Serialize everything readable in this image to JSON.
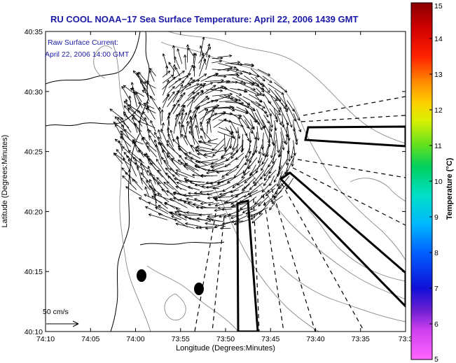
{
  "chart_data": {
    "type": "map",
    "title": "RU COOL  NOAA−17  Sea Surface Temperature:  April 22, 2006 1439 GMT",
    "legend_lines": [
      "Raw Surface Current:",
      "April 22, 2006 14:00 GMT"
    ],
    "xlabel": "Longitude (Degrees:Minutes)",
    "ylabel": "Latitude (Degrees:Minutes)",
    "x_ticks": [
      "74:10",
      "74:05",
      "74:00",
      "73:55",
      "73:50",
      "73:45",
      "73:40",
      "73:35",
      "73:3"
    ],
    "y_ticks": [
      "40:35",
      "40:30",
      "40:25",
      "40:20",
      "40:15",
      "40:10"
    ],
    "xlim": [
      -74.1667,
      -73.5
    ],
    "ylim": [
      40.1667,
      40.5833
    ],
    "scale_label": "50 cm/s",
    "colorbar": {
      "label": "Temperature (°C)",
      "ticks": [
        5,
        6,
        7,
        8,
        9,
        10,
        11,
        12,
        13,
        14,
        15
      ],
      "range": [
        5,
        15
      ]
    },
    "colors": {
      "title": "#1a1aa6",
      "vectors": "#000000",
      "contours": "#8a8a8a",
      "coastline": "#000000"
    }
  }
}
